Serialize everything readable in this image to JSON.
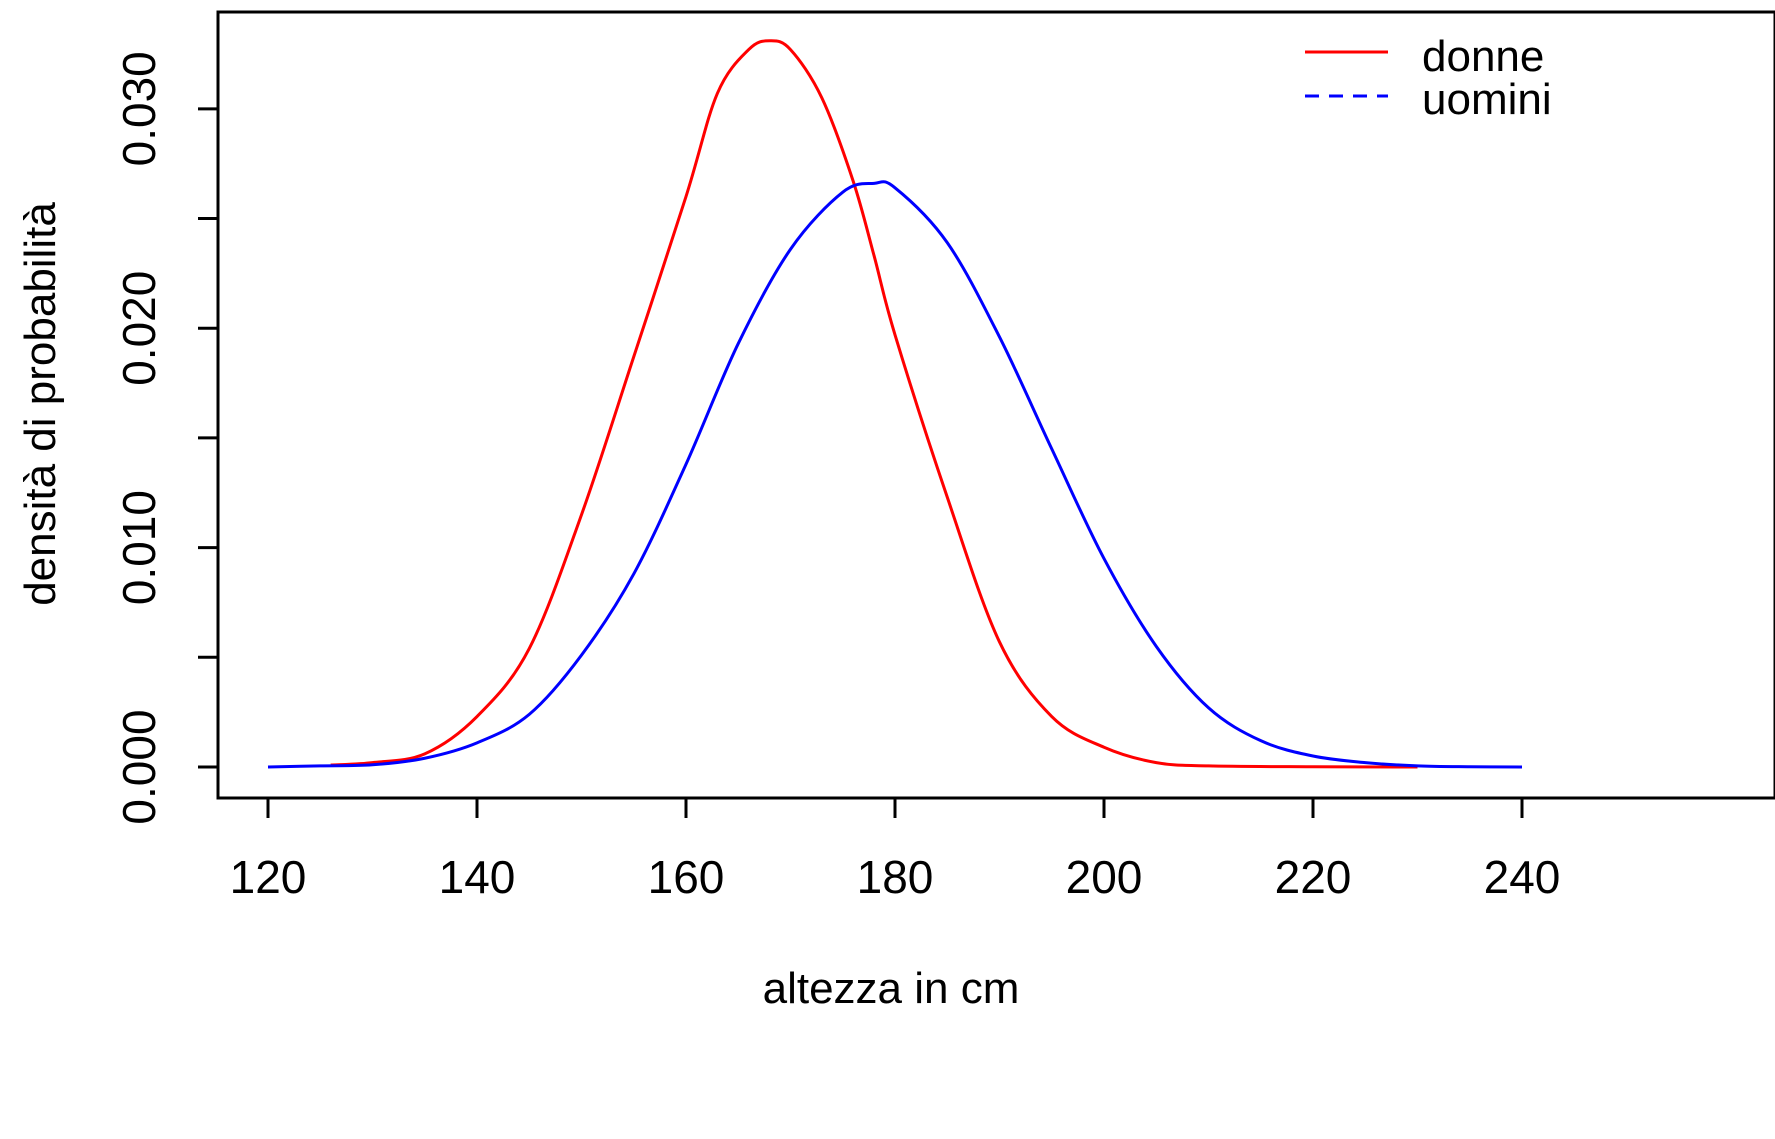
{
  "chart_data": {
    "type": "line",
    "title": "",
    "xlabel": "altezza in cm",
    "ylabel": "densità di probabilità",
    "xlim": [
      120,
      240
    ],
    "ylim": [
      0,
      0.033
    ],
    "x_ticks": [
      120,
      140,
      160,
      180,
      200,
      220,
      240
    ],
    "x_tick_labels": [
      "120",
      "140",
      "160",
      "180",
      "200",
      "220",
      "240"
    ],
    "y_ticks": [
      0.0,
      0.005,
      0.01,
      0.015,
      0.02,
      0.025,
      0.03
    ],
    "y_tick_labels": [
      "0.000",
      "",
      "0.010",
      "",
      "0.020",
      "",
      "0.030"
    ],
    "grid": false,
    "legend": {
      "position": "top-right"
    },
    "series": [
      {
        "name": "donne",
        "color": "#ff0000",
        "line_style": "solid",
        "x": [
          126,
          130,
          135,
          140,
          145,
          150,
          155,
          160,
          163,
          166,
          168,
          170,
          173,
          176,
          178,
          180,
          185,
          190,
          195,
          200,
          205,
          210,
          220,
          230
        ],
        "y": [
          9e-05,
          0.0002,
          0.0006,
          0.0023,
          0.0054,
          0.0115,
          0.0187,
          0.026,
          0.0307,
          0.0327,
          0.0331,
          0.0327,
          0.0305,
          0.0267,
          0.0233,
          0.0197,
          0.0123,
          0.0057,
          0.0023,
          0.0009,
          0.0002,
          5e-05,
          1e-05,
          0.0
        ]
      },
      {
        "name": "uomini",
        "color": "#0000ff",
        "line_style": "solid",
        "x": [
          120,
          125,
          130,
          135,
          140,
          145,
          150,
          155,
          160,
          165,
          170,
          175,
          178,
          180,
          185,
          190,
          195,
          200,
          205,
          210,
          215,
          220,
          225,
          230,
          235,
          240
        ],
        "y": [
          0.0,
          5e-05,
          0.0001,
          0.0004,
          0.0011,
          0.0024,
          0.0051,
          0.0088,
          0.0138,
          0.0193,
          0.0236,
          0.0262,
          0.0266,
          0.0264,
          0.0239,
          0.0196,
          0.0145,
          0.0095,
          0.0055,
          0.0027,
          0.0012,
          0.0005,
          0.0002,
          5e-05,
          1e-05,
          0.0
        ]
      }
    ]
  }
}
